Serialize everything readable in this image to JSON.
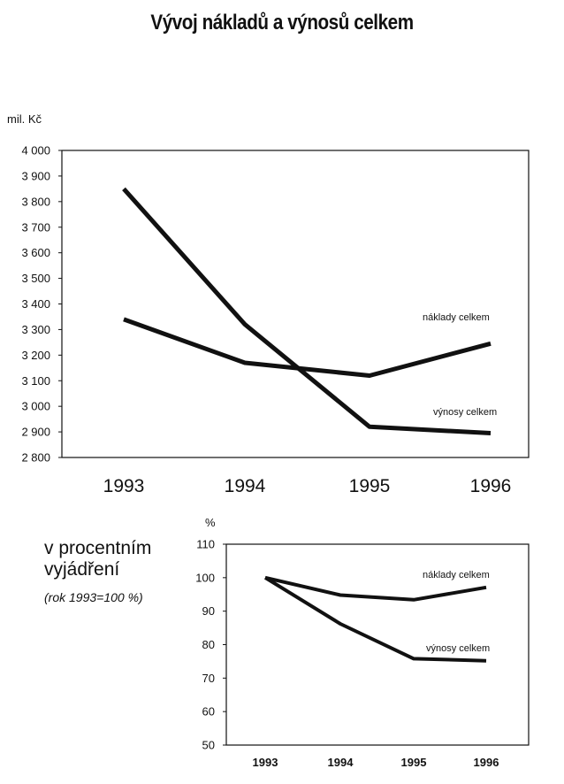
{
  "title": "Vývoj nákladů a výnosů celkem",
  "side_caption": {
    "line1": "v procentním",
    "line2": "vyjádření",
    "note": "(rok 1993=100 %)"
  },
  "colors": {
    "line": "#111111",
    "axis": "#111111"
  },
  "chart_data": [
    {
      "type": "line",
      "title": "",
      "ylabel": "mil. Kč",
      "xlabel": "",
      "categories": [
        "1993",
        "1994",
        "1995",
        "1996"
      ],
      "ylim": [
        2800,
        4000
      ],
      "yticks": [
        2800,
        2900,
        3000,
        3100,
        3200,
        3300,
        3400,
        3500,
        3600,
        3700,
        3800,
        3900,
        4000
      ],
      "ytick_labels": [
        "2 800",
        "2 900",
        "3 000",
        "3 100",
        "3 200",
        "3 300",
        "3 400",
        "3 500",
        "3 600",
        "3 700",
        "3 800",
        "3 900",
        "4 000"
      ],
      "grid": false,
      "series": [
        {
          "name": "náklady celkem",
          "values": [
            3340,
            3170,
            3120,
            3245
          ]
        },
        {
          "name": "výnosy celkem",
          "values": [
            3850,
            3320,
            2920,
            2895
          ]
        }
      ]
    },
    {
      "type": "line",
      "title": "",
      "ylabel": "%",
      "xlabel": "",
      "categories": [
        "1993",
        "1994",
        "1995",
        "1996"
      ],
      "ylim": [
        50,
        110
      ],
      "yticks": [
        50,
        60,
        70,
        80,
        90,
        100,
        110
      ],
      "ytick_labels": [
        "50",
        "60",
        "70",
        "80",
        "90",
        "100",
        "110"
      ],
      "grid": false,
      "series": [
        {
          "name": "náklady celkem",
          "values": [
            100,
            94.8,
            93.4,
            97.1
          ]
        },
        {
          "name": "výnosy celkem",
          "values": [
            100,
            86.2,
            75.8,
            75.2
          ]
        }
      ]
    }
  ]
}
